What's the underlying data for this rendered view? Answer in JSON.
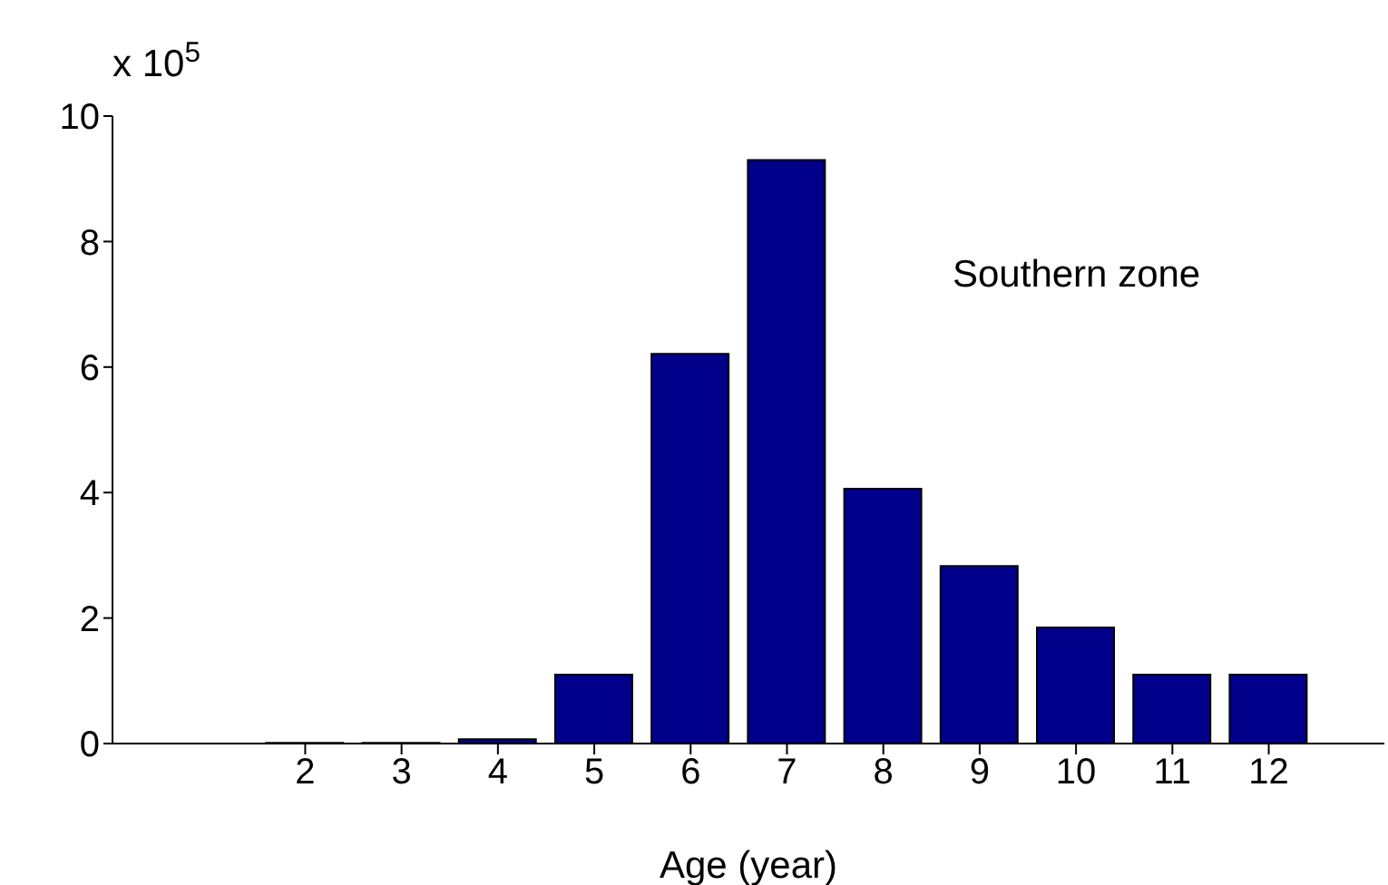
{
  "chart_data": {
    "type": "bar",
    "xlabel": "Age (year)",
    "annotations": [
      "x 10$^{5}$",
      "Southern zone"
    ],
    "x": [
      2,
      3,
      4,
      5,
      6,
      7,
      8,
      9,
      10,
      11,
      12
    ],
    "values": [
      0.01,
      0.01,
      0.07,
      1.1,
      6.21,
      9.3,
      4.06,
      2.83,
      1.85,
      1.1,
      1.1
    ],
    "color": "#00008b",
    "xlim": [
      0,
      13.2
    ],
    "xticks": [
      2,
      3,
      4,
      5,
      6,
      7,
      8,
      9,
      10,
      11,
      12
    ],
    "ylim": [
      0,
      10
    ],
    "yticks": [
      0,
      2,
      4,
      6,
      8,
      10
    ]
  }
}
